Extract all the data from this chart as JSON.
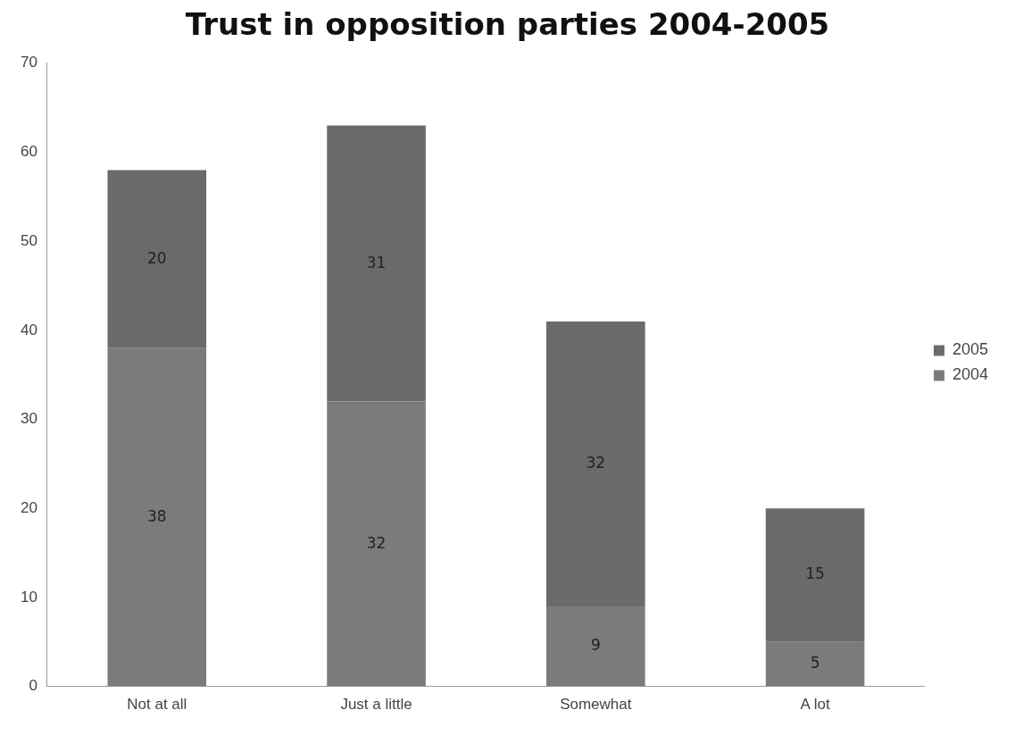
{
  "chart_data": {
    "type": "bar",
    "title": "Trust in opposition parties 2004-2005",
    "categories": [
      "Not at all",
      "Just a little",
      "Somewhat",
      "A lot"
    ],
    "stacked": true,
    "series": [
      {
        "name": "2004",
        "color": "#7b7b7b",
        "values": [
          38,
          32,
          9,
          5
        ]
      },
      {
        "name": "2005",
        "color": "#6a6a6a",
        "values": [
          20,
          31,
          32,
          15
        ]
      }
    ],
    "ylim": [
      0,
      70
    ],
    "yticks": [
      0,
      10,
      20,
      30,
      40,
      50,
      60,
      70
    ],
    "data_labels": true,
    "grid": false,
    "legend": "right"
  }
}
